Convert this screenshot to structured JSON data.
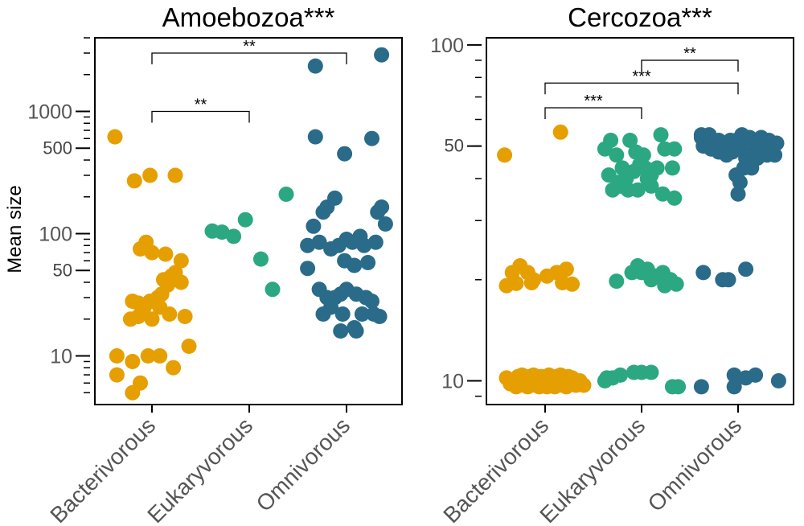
{
  "colors": {
    "Bacterivorous": "#E69F00",
    "Eukaryvorous": "#2BA881",
    "Omnivorous": "#2A6B8A"
  },
  "ylabel": "Mean size",
  "chart_data": [
    {
      "type": "scatter",
      "title": "Amoebozoa***",
      "yscale": "log",
      "ylim": [
        4,
        4000
      ],
      "ylabel": "Mean size",
      "categories": [
        "Bacterivorous",
        "Eukaryvorous",
        "Omnivorous"
      ],
      "ytick_labels": [
        "10",
        "50",
        "100",
        "500",
        "1000"
      ],
      "ytick_values": [
        10,
        50,
        100,
        500,
        1000
      ],
      "comparisons": [
        {
          "from": "Bacterivorous",
          "to": "Omnivorous",
          "label": "**",
          "y": 3000
        },
        {
          "from": "Bacterivorous",
          "to": "Eukaryvorous",
          "label": "**",
          "y": 1000
        }
      ],
      "series": [
        {
          "name": "Bacterivorous",
          "points": [
            [
              -0.38,
              620
            ],
            [
              -0.18,
              270
            ],
            [
              -0.02,
              300
            ],
            [
              0.24,
              300
            ],
            [
              -0.12,
              75
            ],
            [
              -0.06,
              85
            ],
            [
              0.0,
              70
            ],
            [
              0.14,
              68
            ],
            [
              0.3,
              60
            ],
            [
              -0.2,
              28
            ],
            [
              -0.14,
              27
            ],
            [
              -0.02,
              28
            ],
            [
              0.06,
              30
            ],
            [
              0.1,
              32
            ],
            [
              0.16,
              38
            ],
            [
              0.2,
              45
            ],
            [
              0.24,
              48
            ],
            [
              0.3,
              40
            ],
            [
              0.12,
              42
            ],
            [
              -0.22,
              20
            ],
            [
              -0.14,
              21
            ],
            [
              0.0,
              20
            ],
            [
              0.08,
              25
            ],
            [
              0.18,
              22
            ],
            [
              0.34,
              21
            ],
            [
              -0.08,
              25
            ],
            [
              -0.36,
              10
            ],
            [
              -0.2,
              9
            ],
            [
              -0.04,
              10
            ],
            [
              0.08,
              10
            ],
            [
              0.22,
              8
            ],
            [
              0.38,
              12
            ],
            [
              -0.36,
              7
            ],
            [
              -0.12,
              6
            ],
            [
              -0.2,
              5
            ]
          ]
        },
        {
          "name": "Eukaryvorous",
          "points": [
            [
              -0.38,
              105
            ],
            [
              -0.28,
              103
            ],
            [
              -0.16,
              95
            ],
            [
              -0.04,
              130
            ],
            [
              0.12,
              62
            ],
            [
              0.24,
              35
            ],
            [
              0.38,
              210
            ]
          ]
        },
        {
          "name": "Omnivorous",
          "points": [
            [
              -0.32,
              2350
            ],
            [
              0.36,
              2900
            ],
            [
              -0.32,
              620
            ],
            [
              -0.02,
              450
            ],
            [
              0.26,
              600
            ],
            [
              -0.34,
              115
            ],
            [
              -0.2,
              165
            ],
            [
              -0.12,
              195
            ],
            [
              -0.24,
              150
            ],
            [
              0.32,
              150
            ],
            [
              0.36,
              165
            ],
            [
              0.4,
              120
            ],
            [
              -0.4,
              80
            ],
            [
              -0.28,
              85
            ],
            [
              -0.16,
              75
            ],
            [
              -0.08,
              80
            ],
            [
              0.0,
              90
            ],
            [
              0.06,
              85
            ],
            [
              0.14,
              95
            ],
            [
              0.18,
              80
            ],
            [
              -0.02,
              60
            ],
            [
              0.08,
              55
            ],
            [
              0.22,
              58
            ],
            [
              0.3,
              85
            ],
            [
              -0.4,
              52
            ],
            [
              -0.28,
              35
            ],
            [
              -0.2,
              30
            ],
            [
              -0.12,
              30
            ],
            [
              -0.06,
              32
            ],
            [
              0.0,
              35
            ],
            [
              0.1,
              32
            ],
            [
              0.2,
              30
            ],
            [
              0.26,
              28
            ],
            [
              -0.24,
              22
            ],
            [
              -0.16,
              25
            ],
            [
              -0.04,
              22
            ],
            [
              0.08,
              17
            ],
            [
              0.16,
              22
            ],
            [
              0.28,
              22
            ],
            [
              0.34,
              21
            ],
            [
              0.1,
              16
            ],
            [
              -0.06,
              16
            ]
          ]
        }
      ]
    },
    {
      "type": "scatter",
      "title": "Cercozoa***",
      "yscale": "log",
      "ylim": [
        8.5,
        105
      ],
      "ylabel": "",
      "categories": [
        "Bacterivorous",
        "Eukaryvorous",
        "Omnivorous"
      ],
      "ytick_labels": [
        "10",
        "50",
        "100"
      ],
      "ytick_values": [
        10,
        50,
        100
      ],
      "comparisons": [
        {
          "from": "Eukaryvorous",
          "to": "Omnivorous",
          "label": "**",
          "y": 90
        },
        {
          "from": "Bacterivorous",
          "to": "Omnivorous",
          "label": "***",
          "y": 77
        },
        {
          "from": "Bacterivorous",
          "to": "Eukaryvorous",
          "label": "***",
          "y": 65
        }
      ],
      "series": [
        {
          "name": "Bacterivorous",
          "points": [
            [
              -0.42,
              47
            ],
            [
              0.16,
              55
            ],
            [
              -0.34,
              21
            ],
            [
              -0.26,
              22
            ],
            [
              -0.18,
              21
            ],
            [
              -0.12,
              20
            ],
            [
              0.02,
              20.5
            ],
            [
              0.12,
              21
            ],
            [
              0.22,
              21.5
            ],
            [
              -0.4,
              19.2
            ],
            [
              -0.3,
              19.5
            ],
            [
              -0.14,
              19.6
            ],
            [
              0.18,
              19.6
            ],
            [
              0.28,
              19.4
            ],
            [
              -0.4,
              10.2
            ],
            [
              -0.36,
              9.8
            ],
            [
              -0.32,
              10.1
            ],
            [
              -0.3,
              9.6
            ],
            [
              -0.28,
              10.3
            ],
            [
              -0.26,
              9.9
            ],
            [
              -0.24,
              10.4
            ],
            [
              -0.22,
              9.7
            ],
            [
              -0.2,
              10.1
            ],
            [
              -0.18,
              9.6
            ],
            [
              -0.16,
              10.3
            ],
            [
              -0.14,
              9.9
            ],
            [
              -0.12,
              10.4
            ],
            [
              -0.1,
              9.7
            ],
            [
              -0.08,
              10.1
            ],
            [
              -0.06,
              9.6
            ],
            [
              -0.04,
              10.3
            ],
            [
              -0.02,
              9.8
            ],
            [
              0.0,
              10.2
            ],
            [
              0.02,
              9.6
            ],
            [
              0.04,
              10.4
            ],
            [
              0.06,
              9.9
            ],
            [
              0.08,
              10.2
            ],
            [
              0.1,
              9.6
            ],
            [
              0.12,
              10.3
            ],
            [
              0.14,
              9.8
            ],
            [
              0.16,
              10.4
            ],
            [
              0.18,
              9.7
            ],
            [
              0.2,
              10.1
            ],
            [
              0.22,
              9.6
            ],
            [
              0.24,
              10.3
            ],
            [
              0.26,
              9.9
            ],
            [
              0.28,
              10.2
            ],
            [
              0.32,
              9.7
            ],
            [
              0.36,
              10.0
            ],
            [
              0.4,
              9.7
            ]
          ]
        },
        {
          "name": "Eukaryvorous",
          "points": [
            [
              -0.38,
              49
            ],
            [
              -0.32,
              52
            ],
            [
              -0.26,
              47
            ],
            [
              -0.2,
              43
            ],
            [
              -0.12,
              52
            ],
            [
              -0.06,
              48
            ],
            [
              0.02,
              47
            ],
            [
              0.2,
              54
            ],
            [
              0.34,
              49
            ],
            [
              -0.34,
              41
            ],
            [
              -0.24,
              39
            ],
            [
              -0.16,
              40
            ],
            [
              -0.08,
              42
            ],
            [
              -0.02,
              44
            ],
            [
              0.04,
              43
            ],
            [
              0.1,
              41
            ],
            [
              0.16,
              43
            ],
            [
              0.24,
              49
            ],
            [
              0.32,
              43
            ],
            [
              -0.3,
              37
            ],
            [
              -0.22,
              38
            ],
            [
              -0.14,
              37
            ],
            [
              -0.04,
              37
            ],
            [
              0.1,
              38
            ],
            [
              0.22,
              36
            ],
            [
              0.34,
              35
            ],
            [
              -0.18,
              39
            ],
            [
              0.06,
              40
            ],
            [
              -0.04,
              22
            ],
            [
              0.0,
              21
            ],
            [
              0.06,
              21.5
            ],
            [
              0.14,
              20.5
            ],
            [
              0.22,
              21
            ],
            [
              0.3,
              20
            ],
            [
              -0.1,
              21
            ],
            [
              0.1,
              20
            ],
            [
              -0.26,
              19.8
            ],
            [
              0.36,
              19.4
            ],
            [
              0.24,
              19.2
            ],
            [
              -0.38,
              10.0
            ],
            [
              -0.3,
              10.2
            ],
            [
              -0.22,
              10.4
            ],
            [
              -0.08,
              10.6
            ],
            [
              0.0,
              10.6
            ],
            [
              0.1,
              10.6
            ],
            [
              0.32,
              9.6
            ],
            [
              0.38,
              9.6
            ],
            [
              -0.36,
              10.2
            ]
          ]
        },
        {
          "name": "Omnivorous",
          "points": [
            [
              -0.38,
              54
            ],
            [
              -0.3,
              54
            ],
            [
              -0.2,
              52
            ],
            [
              -0.14,
              50
            ],
            [
              -0.08,
              52
            ],
            [
              -0.02,
              52
            ],
            [
              0.04,
              54
            ],
            [
              0.12,
              53
            ],
            [
              0.18,
              51
            ],
            [
              0.26,
              52
            ],
            [
              0.34,
              49
            ],
            [
              0.4,
              51
            ],
            [
              -0.36,
              50
            ],
            [
              -0.28,
              49
            ],
            [
              -0.2,
              48
            ],
            [
              -0.12,
              49
            ],
            [
              -0.06,
              48
            ],
            [
              0.02,
              50
            ],
            [
              0.08,
              46
            ],
            [
              0.16,
              48
            ],
            [
              0.24,
              53
            ],
            [
              0.3,
              47
            ],
            [
              0.38,
              47
            ],
            [
              -0.3,
              51
            ],
            [
              0.06,
              52
            ],
            [
              -0.02,
              41
            ],
            [
              0.06,
              43
            ],
            [
              0.14,
              43
            ],
            [
              0.2,
              46
            ],
            [
              0.28,
              49
            ],
            [
              0.36,
              49
            ],
            [
              -0.12,
              47
            ],
            [
              0.02,
              39
            ],
            [
              0.0,
              36
            ],
            [
              -0.38,
              53
            ],
            [
              0.32,
              52
            ],
            [
              0.1,
              44
            ],
            [
              -0.36,
              21
            ],
            [
              -0.16,
              20
            ],
            [
              -0.1,
              20
            ],
            [
              0.08,
              21.5
            ],
            [
              -0.38,
              9.6
            ],
            [
              -0.04,
              10.4
            ],
            [
              0.08,
              10.2
            ],
            [
              0.18,
              10.4
            ],
            [
              0.42,
              10.0
            ],
            [
              -0.04,
              9.6
            ]
          ]
        }
      ]
    }
  ]
}
